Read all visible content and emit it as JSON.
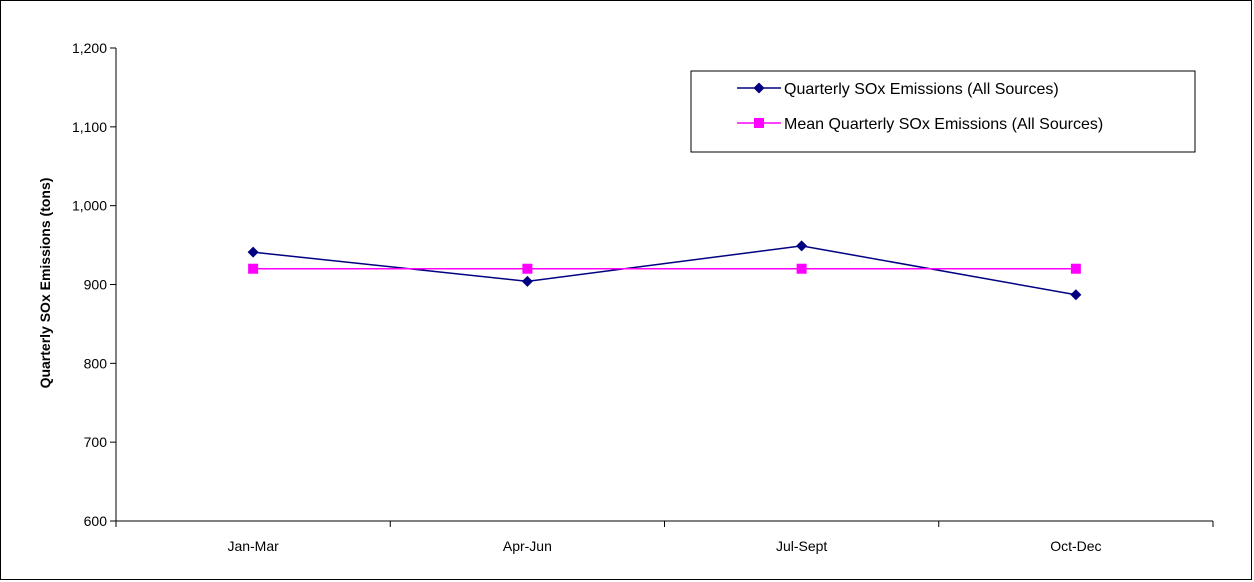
{
  "chart_data": {
    "type": "line",
    "title": "",
    "xlabel": "",
    "ylabel": "Quarterly SOx Emissions (tons)",
    "categories": [
      "Jan-Mar",
      "Apr-Jun",
      "Jul-Sept",
      "Oct-Dec"
    ],
    "ylim": [
      600,
      1200
    ],
    "yticks": [
      600,
      700,
      800,
      900,
      1000,
      1100,
      1200
    ],
    "ytick_labels": [
      "600",
      "700",
      "800",
      "900",
      "1,000",
      "1,100",
      "1,200"
    ],
    "grid": false,
    "legend_position": "top-right",
    "series": [
      {
        "name": "Quarterly SOx Emissions (All Sources)",
        "values": [
          941,
          904,
          949,
          887
        ],
        "color": "#000080",
        "marker": "diamond"
      },
      {
        "name": "Mean Quarterly SOx Emissions (All Sources)",
        "values": [
          920,
          920,
          920,
          920
        ],
        "color": "#FF00FF",
        "marker": "square"
      }
    ]
  }
}
